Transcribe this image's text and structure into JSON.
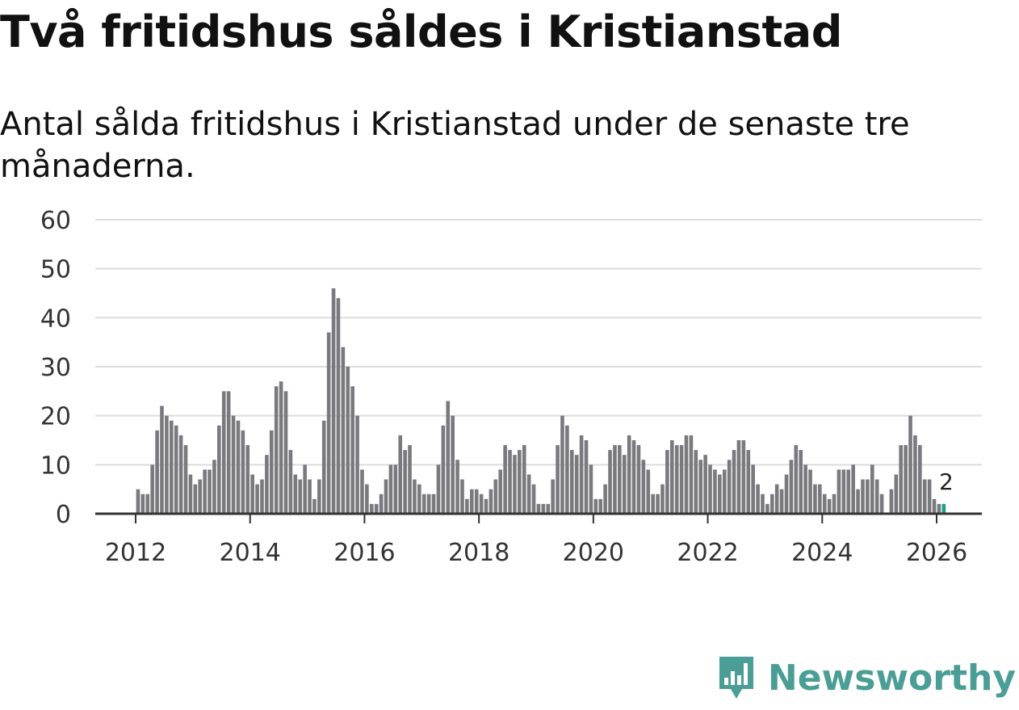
{
  "header": {
    "title": "Två fritidshus såldes i Kristianstad",
    "subtitle": "Antal sålda fritidshus i Kristianstad under de senaste tre månaderna."
  },
  "brand": {
    "name": "Newsworthy",
    "icon": "newsworthy-logo-icon",
    "color": "#4a9e96"
  },
  "colors": {
    "bar": "#7a797e",
    "highlight": "#1b9e8c",
    "grid": "#dddddd",
    "axis": "#333333"
  },
  "chart_data": {
    "type": "bar",
    "title": "Två fritidshus såldes i Kristianstad",
    "subtitle": "Antal sålda fritidshus i Kristianstad under de senaste tre månaderna.",
    "xlabel": "",
    "ylabel": "",
    "ylim": [
      0,
      60
    ],
    "yticks": [
      0,
      10,
      20,
      30,
      40,
      50,
      60
    ],
    "xticks": [
      "2012",
      "2014",
      "2016",
      "2018",
      "2020",
      "2022",
      "2024",
      "2026"
    ],
    "start": "2012-01",
    "frequency": "monthly",
    "grid": true,
    "values": [
      5,
      4,
      4,
      10,
      17,
      22,
      20,
      19,
      18,
      16,
      14,
      8,
      6,
      7,
      9,
      9,
      11,
      18,
      25,
      25,
      20,
      19,
      17,
      14,
      8,
      6,
      7,
      12,
      17,
      26,
      27,
      25,
      13,
      8,
      7,
      10,
      7,
      3,
      7,
      19,
      37,
      46,
      44,
      34,
      30,
      26,
      20,
      9,
      6,
      2,
      2,
      4,
      7,
      10,
      10,
      16,
      13,
      14,
      7,
      6,
      4,
      4,
      4,
      10,
      18,
      23,
      20,
      11,
      7,
      3,
      5,
      5,
      4,
      3,
      5,
      7,
      9,
      14,
      13,
      12,
      13,
      14,
      8,
      6,
      2,
      2,
      2,
      7,
      14,
      20,
      18,
      13,
      12,
      16,
      15,
      10,
      3,
      3,
      6,
      13,
      14,
      14,
      12,
      16,
      15,
      14,
      11,
      9,
      4,
      4,
      6,
      13,
      15,
      14,
      14,
      16,
      16,
      13,
      11,
      12,
      10,
      9,
      8,
      9,
      11,
      13,
      15,
      15,
      13,
      10,
      6,
      4,
      2,
      4,
      6,
      5,
      8,
      11,
      14,
      13,
      10,
      9,
      6,
      6,
      4,
      3,
      4,
      9,
      9,
      9,
      10,
      5,
      7,
      7,
      10,
      7,
      4,
      0,
      5,
      8,
      14,
      14,
      20,
      16,
      14,
      7,
      7,
      3,
      2,
      2
    ],
    "highlight_last": 1,
    "annotations": [
      {
        "text": "2",
        "target": "last"
      }
    ]
  }
}
